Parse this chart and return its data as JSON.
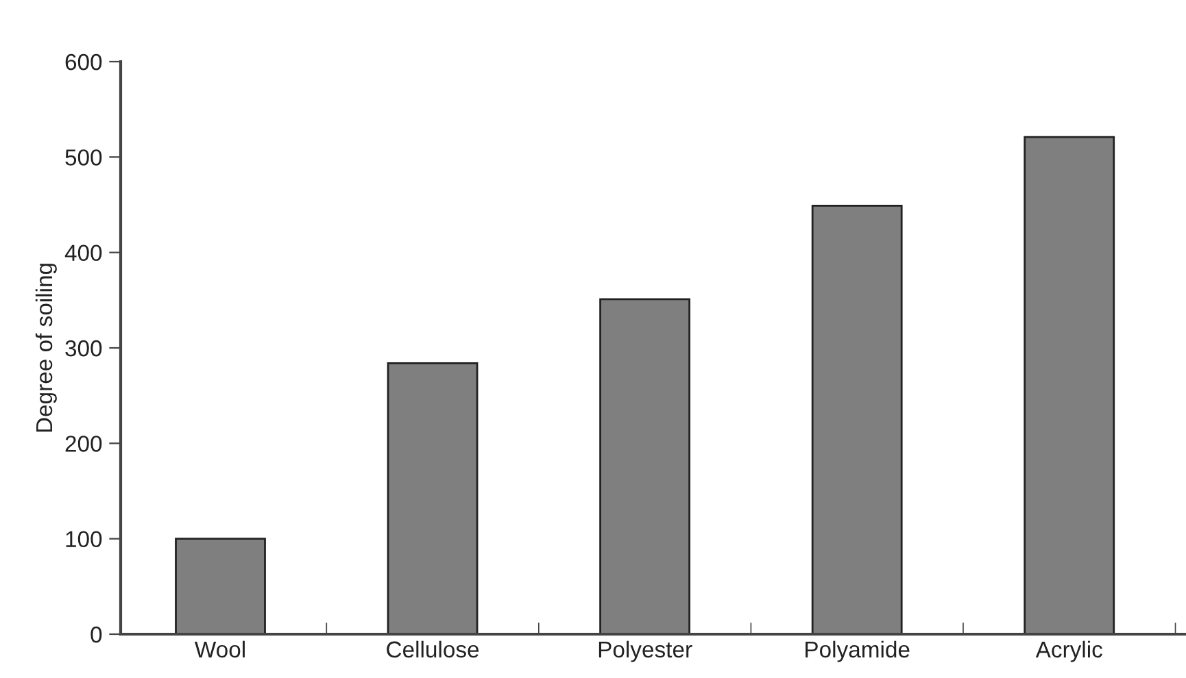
{
  "chart_data": {
    "type": "bar",
    "ylabel": "Degree of soiling",
    "categories": [
      "Wool",
      "Cellulose",
      "Polyester",
      "Polyamide",
      "Acrylic"
    ],
    "values": [
      100,
      284,
      351,
      449,
      521
    ],
    "color": "#7f7f7f",
    "ylim": [
      0,
      600
    ],
    "yticks": [
      0,
      100,
      200,
      300,
      400,
      500,
      600
    ],
    "grid": false
  }
}
